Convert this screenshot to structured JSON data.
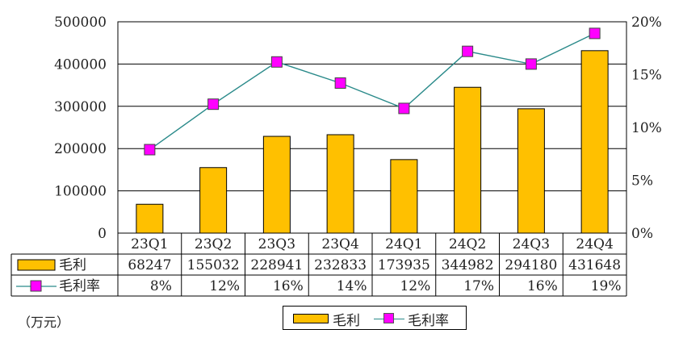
{
  "chart_data": {
    "type": "bar",
    "categories": [
      "23Q1",
      "23Q2",
      "23Q3",
      "23Q4",
      "24Q1",
      "24Q2",
      "24Q3",
      "24Q4"
    ],
    "series": [
      {
        "name": "毛利",
        "kind": "bar",
        "axis": "left",
        "color": "#ffc000",
        "values": [
          68247,
          155032,
          228941,
          232833,
          173935,
          344982,
          294180,
          431648
        ]
      },
      {
        "name": "毛利率",
        "kind": "line",
        "axis": "right",
        "color": "#ff00ff",
        "line_color": "#2a8a8a",
        "values": [
          7.9,
          12.2,
          16.2,
          14.2,
          11.8,
          17.2,
          16.0,
          18.9
        ]
      }
    ],
    "table_rows": [
      {
        "label": "毛利",
        "cells": [
          "68247",
          "155032",
          "228941",
          "232833",
          "173935",
          "344982",
          "294180",
          "431648"
        ]
      },
      {
        "label": "毛利率",
        "cells": [
          "8%",
          "12%",
          "16%",
          "14%",
          "12%",
          "17%",
          "16%",
          "19%"
        ]
      }
    ],
    "y_left": {
      "min": 0,
      "max": 500000,
      "ticks": [
        "0",
        "100000",
        "200000",
        "300000",
        "400000",
        "500000"
      ]
    },
    "y_right": {
      "min": 0,
      "max": 20,
      "ticks": [
        "0%",
        "5%",
        "10%",
        "15%",
        "20%"
      ]
    },
    "unit_label": "（万元）",
    "grid": true,
    "legend_placement": "bottom-center"
  }
}
